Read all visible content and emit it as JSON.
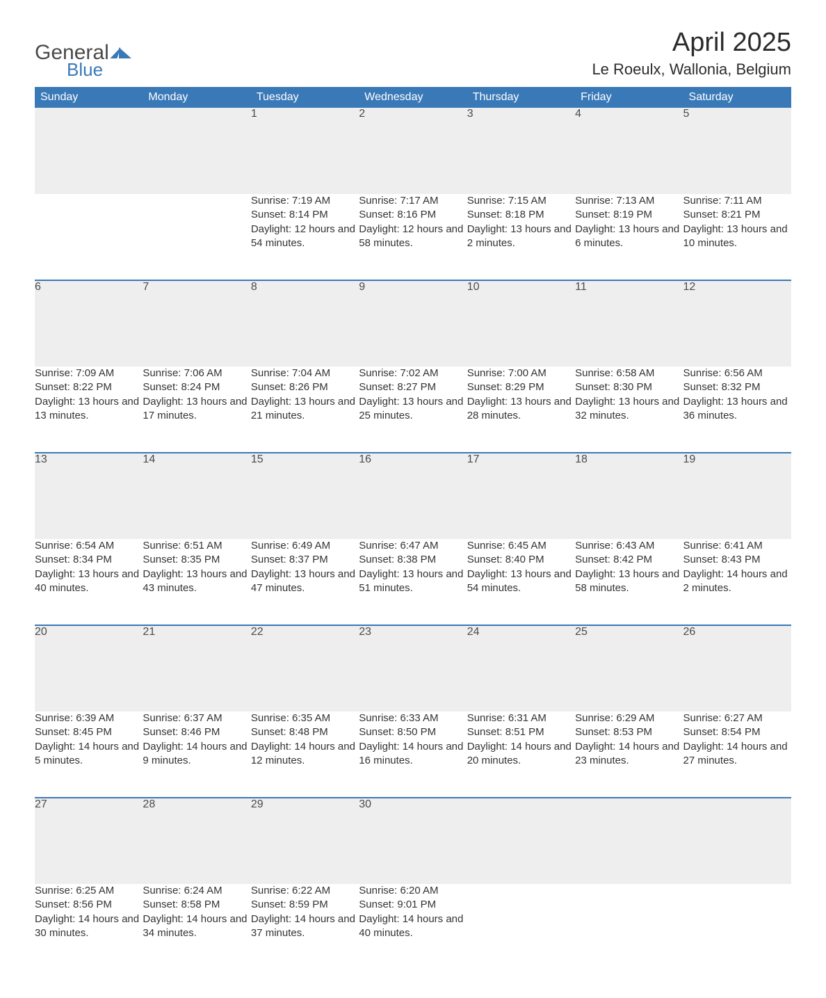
{
  "logo": {
    "word1": "General",
    "word2": "Blue"
  },
  "title": "April 2025",
  "location": "Le Roeulx, Wallonia, Belgium",
  "colors": {
    "brand_blue": "#3a79b7",
    "header_text": "#ffffff",
    "daynum_bg": "#eeeeee",
    "body_text": "#333333",
    "page_bg": "#ffffff"
  },
  "columns": [
    "Sunday",
    "Monday",
    "Tuesday",
    "Wednesday",
    "Thursday",
    "Friday",
    "Saturday"
  ],
  "weeks": [
    [
      null,
      null,
      {
        "n": "1",
        "sr": "7:19 AM",
        "ss": "8:14 PM",
        "dl": "12 hours and 54 minutes."
      },
      {
        "n": "2",
        "sr": "7:17 AM",
        "ss": "8:16 PM",
        "dl": "12 hours and 58 minutes."
      },
      {
        "n": "3",
        "sr": "7:15 AM",
        "ss": "8:18 PM",
        "dl": "13 hours and 2 minutes."
      },
      {
        "n": "4",
        "sr": "7:13 AM",
        "ss": "8:19 PM",
        "dl": "13 hours and 6 minutes."
      },
      {
        "n": "5",
        "sr": "7:11 AM",
        "ss": "8:21 PM",
        "dl": "13 hours and 10 minutes."
      }
    ],
    [
      {
        "n": "6",
        "sr": "7:09 AM",
        "ss": "8:22 PM",
        "dl": "13 hours and 13 minutes."
      },
      {
        "n": "7",
        "sr": "7:06 AM",
        "ss": "8:24 PM",
        "dl": "13 hours and 17 minutes."
      },
      {
        "n": "8",
        "sr": "7:04 AM",
        "ss": "8:26 PM",
        "dl": "13 hours and 21 minutes."
      },
      {
        "n": "9",
        "sr": "7:02 AM",
        "ss": "8:27 PM",
        "dl": "13 hours and 25 minutes."
      },
      {
        "n": "10",
        "sr": "7:00 AM",
        "ss": "8:29 PM",
        "dl": "13 hours and 28 minutes."
      },
      {
        "n": "11",
        "sr": "6:58 AM",
        "ss": "8:30 PM",
        "dl": "13 hours and 32 minutes."
      },
      {
        "n": "12",
        "sr": "6:56 AM",
        "ss": "8:32 PM",
        "dl": "13 hours and 36 minutes."
      }
    ],
    [
      {
        "n": "13",
        "sr": "6:54 AM",
        "ss": "8:34 PM",
        "dl": "13 hours and 40 minutes."
      },
      {
        "n": "14",
        "sr": "6:51 AM",
        "ss": "8:35 PM",
        "dl": "13 hours and 43 minutes."
      },
      {
        "n": "15",
        "sr": "6:49 AM",
        "ss": "8:37 PM",
        "dl": "13 hours and 47 minutes."
      },
      {
        "n": "16",
        "sr": "6:47 AM",
        "ss": "8:38 PM",
        "dl": "13 hours and 51 minutes."
      },
      {
        "n": "17",
        "sr": "6:45 AM",
        "ss": "8:40 PM",
        "dl": "13 hours and 54 minutes."
      },
      {
        "n": "18",
        "sr": "6:43 AM",
        "ss": "8:42 PM",
        "dl": "13 hours and 58 minutes."
      },
      {
        "n": "19",
        "sr": "6:41 AM",
        "ss": "8:43 PM",
        "dl": "14 hours and 2 minutes."
      }
    ],
    [
      {
        "n": "20",
        "sr": "6:39 AM",
        "ss": "8:45 PM",
        "dl": "14 hours and 5 minutes."
      },
      {
        "n": "21",
        "sr": "6:37 AM",
        "ss": "8:46 PM",
        "dl": "14 hours and 9 minutes."
      },
      {
        "n": "22",
        "sr": "6:35 AM",
        "ss": "8:48 PM",
        "dl": "14 hours and 12 minutes."
      },
      {
        "n": "23",
        "sr": "6:33 AM",
        "ss": "8:50 PM",
        "dl": "14 hours and 16 minutes."
      },
      {
        "n": "24",
        "sr": "6:31 AM",
        "ss": "8:51 PM",
        "dl": "14 hours and 20 minutes."
      },
      {
        "n": "25",
        "sr": "6:29 AM",
        "ss": "8:53 PM",
        "dl": "14 hours and 23 minutes."
      },
      {
        "n": "26",
        "sr": "6:27 AM",
        "ss": "8:54 PM",
        "dl": "14 hours and 27 minutes."
      }
    ],
    [
      {
        "n": "27",
        "sr": "6:25 AM",
        "ss": "8:56 PM",
        "dl": "14 hours and 30 minutes."
      },
      {
        "n": "28",
        "sr": "6:24 AM",
        "ss": "8:58 PM",
        "dl": "14 hours and 34 minutes."
      },
      {
        "n": "29",
        "sr": "6:22 AM",
        "ss": "8:59 PM",
        "dl": "14 hours and 37 minutes."
      },
      {
        "n": "30",
        "sr": "6:20 AM",
        "ss": "9:01 PM",
        "dl": "14 hours and 40 minutes."
      },
      null,
      null,
      null
    ]
  ],
  "labels": {
    "sunrise": "Sunrise: ",
    "sunset": "Sunset: ",
    "daylight": "Daylight: "
  }
}
